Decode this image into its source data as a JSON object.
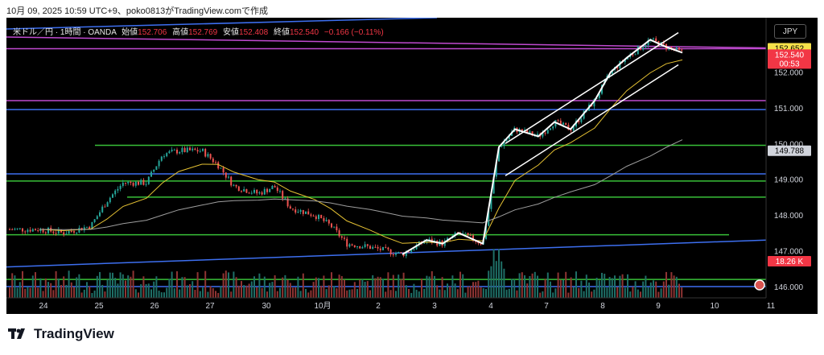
{
  "caption": "10月 09, 2025 10:59 UTC+9、poko0813がTradingView.comで作成",
  "legend": {
    "symbol": "米ドル／円 · 1時間 · OANDA",
    "open_label": "始値",
    "open": "152.706",
    "high_label": "高値",
    "high": "152.769",
    "low_label": "安値",
    "low": "152.408",
    "close_label": "終値",
    "close": "152.540",
    "change": "−0.166 (−0.11%)"
  },
  "currency": "JPY",
  "price_axis": {
    "ticks": [
      "152.000",
      "151.000",
      "150.000",
      "149.000",
      "148.000",
      "147.000",
      "146.000"
    ],
    "tick_values": [
      152,
      151,
      150,
      149,
      148,
      147,
      146
    ],
    "badges": [
      {
        "id": "upper-line",
        "text": "152.652",
        "value": 152.652,
        "bg": "#f5e14a",
        "fg": "#000000"
      },
      {
        "id": "last-price",
        "text": "152.540",
        "sub": "00:53",
        "value": 152.54,
        "bg": "#f23645",
        "fg": "#ffffff"
      },
      {
        "id": "ma-value",
        "text": "149.788",
        "value": 149.788,
        "bg": "#d1d4dc",
        "fg": "#000000"
      },
      {
        "id": "volume",
        "text": "18.26 K",
        "bg": "#f23645",
        "fg": "#ffffff"
      }
    ]
  },
  "time_axis": [
    "24",
    "25",
    "26",
    "27",
    "30",
    "10月",
    "2",
    "3",
    "4",
    "7",
    "8",
    "9",
    "10",
    "11"
  ],
  "chart_data": {
    "type": "candlestick",
    "symbol": "USD/JPY",
    "timeframe": "1H",
    "ylim": [
      145.9,
      153.2
    ],
    "days": [
      "24",
      "25",
      "26",
      "27",
      "30",
      "10月",
      "2",
      "3",
      "4",
      "7",
      "8",
      "9"
    ],
    "close_path": [
      {
        "day": "24",
        "price": 147.6
      },
      {
        "day": "24",
        "price": 147.5
      },
      {
        "day": "25",
        "price": 147.7
      },
      {
        "day": "25",
        "price": 148.4
      },
      {
        "day": "25",
        "price": 148.9
      },
      {
        "day": "26",
        "price": 148.9
      },
      {
        "day": "26",
        "price": 149.7
      },
      {
        "day": "26",
        "price": 149.8
      },
      {
        "day": "27",
        "price": 149.8
      },
      {
        "day": "27",
        "price": 149.4
      },
      {
        "day": "27",
        "price": 148.8
      },
      {
        "day": "30",
        "price": 148.6
      },
      {
        "day": "30",
        "price": 148.8
      },
      {
        "day": "30",
        "price": 148.2
      },
      {
        "day": "10月",
        "price": 148.0
      },
      {
        "day": "10月",
        "price": 147.7
      },
      {
        "day": "10月",
        "price": 147.2
      },
      {
        "day": "2",
        "price": 147.1
      },
      {
        "day": "2",
        "price": 147.0
      },
      {
        "day": "2",
        "price": 146.9
      },
      {
        "day": "3",
        "price": 147.3
      },
      {
        "day": "3",
        "price": 147.2
      },
      {
        "day": "3",
        "price": 147.5
      },
      {
        "day": "4",
        "price": 147.2
      },
      {
        "day": "4",
        "price": 149.9
      },
      {
        "day": "4",
        "price": 150.4
      },
      {
        "day": "7",
        "price": 150.2
      },
      {
        "day": "7",
        "price": 150.6
      },
      {
        "day": "7",
        "price": 150.4
      },
      {
        "day": "8",
        "price": 151.2
      },
      {
        "day": "8",
        "price": 152.0
      },
      {
        "day": "8",
        "price": 152.4
      },
      {
        "day": "9",
        "price": 152.9
      },
      {
        "day": "9",
        "price": 152.7
      },
      {
        "day": "9",
        "price": 152.54
      }
    ],
    "horizontal_levels": [
      {
        "price": 152.65,
        "color": "#c04ad0"
      },
      {
        "price": 151.2,
        "color": "#c04ad0"
      },
      {
        "price": 150.95,
        "color": "#3d6ff0"
      },
      {
        "price": 149.95,
        "color": "#38c038"
      },
      {
        "price": 149.15,
        "color": "#3d6ff0"
      },
      {
        "price": 148.95,
        "color": "#38c038"
      },
      {
        "price": 148.5,
        "color": "#38c038"
      },
      {
        "price": 147.45,
        "color": "#38c038"
      },
      {
        "price": 146.2,
        "color": "#38c038"
      },
      {
        "price": 146.0,
        "color": "#3d6ff0"
      }
    ],
    "colors": {
      "up": "#26a69a",
      "down": "#ef5350",
      "ma_fast": "#e6c233",
      "ma_slow": "#9e9e9e",
      "channel": "#ffffff"
    }
  }
}
